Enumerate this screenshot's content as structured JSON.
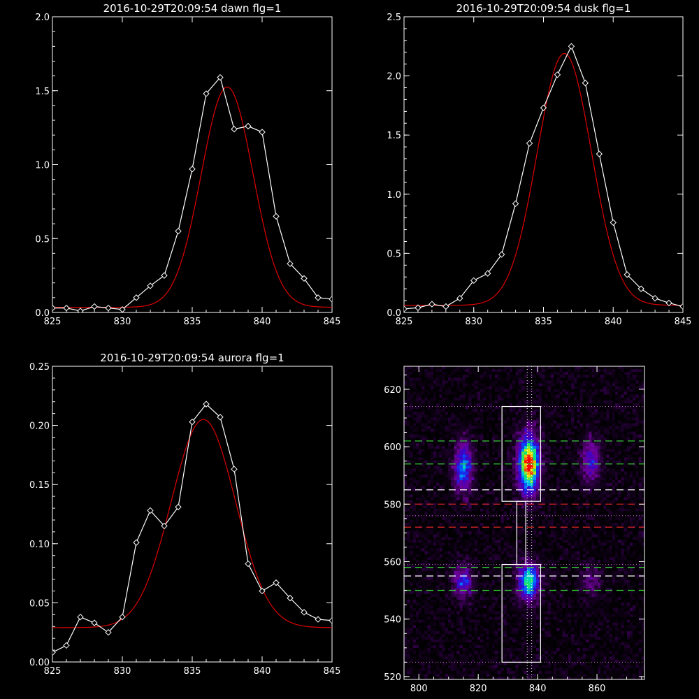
{
  "chart_data": [
    {
      "type": "line",
      "title": "2016-10-29T20:09:54 dawn flg=1",
      "xlim": [
        825,
        845
      ],
      "ylim": [
        0,
        2.0
      ],
      "xticks": [
        "825",
        "830",
        "835",
        "840",
        "845"
      ],
      "xtick_values": [
        825,
        830,
        835,
        840,
        845
      ],
      "yticks": [
        "0.0",
        "0.5",
        "1.0",
        "1.5",
        "2.0"
      ],
      "ytick_values": [
        0,
        0.5,
        1.0,
        1.5,
        2.0
      ],
      "observed": {
        "color": "#ffffff",
        "marker": "diamond",
        "x": [
          825,
          826,
          827,
          828,
          829,
          830,
          831,
          832,
          833,
          834,
          835,
          836,
          837,
          838,
          839,
          840,
          841,
          842,
          843,
          844,
          845
        ],
        "y": [
          0.03,
          0.03,
          0.01,
          0.04,
          0.03,
          0.02,
          0.1,
          0.18,
          0.25,
          0.55,
          0.97,
          1.48,
          1.59,
          1.24,
          1.26,
          1.22,
          0.65,
          0.33,
          0.23,
          0.1,
          0.09
        ]
      },
      "fit": {
        "color": "#e00000",
        "amplitude": 1.49,
        "center": 837.5,
        "sigma": 1.85,
        "offset": 0.035,
        "slope": 0.0
      }
    },
    {
      "type": "line",
      "title": "2016-10-29T20:09:54 dusk flg=1",
      "xlim": [
        825,
        845
      ],
      "ylim": [
        0,
        2.5
      ],
      "xticks": [
        "825",
        "830",
        "835",
        "840",
        "845"
      ],
      "xtick_values": [
        825,
        830,
        835,
        840,
        845
      ],
      "yticks": [
        "0.0",
        "0.5",
        "1.0",
        "1.5",
        "2.0",
        "2.5"
      ],
      "ytick_values": [
        0,
        0.5,
        1.0,
        1.5,
        2.0,
        2.5
      ],
      "observed": {
        "color": "#ffffff",
        "marker": "diamond",
        "x": [
          825,
          826,
          827,
          828,
          829,
          830,
          831,
          832,
          833,
          834,
          835,
          836,
          837,
          838,
          839,
          840,
          841,
          842,
          843,
          844,
          845
        ],
        "y": [
          0.03,
          0.04,
          0.07,
          0.05,
          0.12,
          0.27,
          0.33,
          0.49,
          0.92,
          1.43,
          1.73,
          2.01,
          2.25,
          1.94,
          1.34,
          0.76,
          0.32,
          0.2,
          0.12,
          0.08,
          0.05
        ]
      },
      "fit": {
        "color": "#e00000",
        "amplitude": 2.13,
        "center": 836.5,
        "sigma": 1.95,
        "offset": 0.06,
        "slope": 0.0
      }
    },
    {
      "type": "line",
      "title": "2016-10-29T20:09:54 aurora flg=1",
      "xlim": [
        825,
        845
      ],
      "ylim": [
        0,
        0.25
      ],
      "xticks": [
        "825",
        "830",
        "835",
        "840",
        "845"
      ],
      "xtick_values": [
        825,
        830,
        835,
        840,
        845
      ],
      "yticks": [
        "0.00",
        "0.05",
        "0.10",
        "0.15",
        "0.20",
        "0.25"
      ],
      "ytick_values": [
        0,
        0.05,
        0.1,
        0.15,
        0.2,
        0.25
      ],
      "observed": {
        "color": "#ffffff",
        "marker": "diamond",
        "x": [
          825,
          826,
          827,
          828,
          829,
          830,
          831,
          832,
          833,
          834,
          835,
          836,
          837,
          838,
          839,
          840,
          841,
          842,
          843,
          844,
          845
        ],
        "y": [
          0.008,
          0.014,
          0.038,
          0.033,
          0.025,
          0.038,
          0.101,
          0.128,
          0.115,
          0.131,
          0.203,
          0.218,
          0.207,
          0.163,
          0.083,
          0.06,
          0.067,
          0.054,
          0.042,
          0.036,
          0.035
        ]
      },
      "fit": {
        "color": "#e00000",
        "amplitude": 0.176,
        "center": 835.8,
        "sigma": 2.3,
        "offset": 0.029,
        "slope": 0.0
      }
    },
    {
      "type": "heatmap",
      "title": "",
      "xlim": [
        795,
        876
      ],
      "ylim": [
        519,
        628
      ],
      "xticks": [
        "800",
        "820",
        "840",
        "860"
      ],
      "xtick_values": [
        800,
        820,
        840,
        860
      ],
      "yticks": [
        "520",
        "540",
        "560",
        "580",
        "600",
        "620"
      ],
      "ytick_values": [
        520,
        540,
        560,
        580,
        600,
        620
      ],
      "blobs": [
        {
          "x": 815,
          "y": 593,
          "sx": 2.2,
          "sy": 6,
          "amp": 0.55
        },
        {
          "x": 837,
          "y": 594,
          "sx": 2.5,
          "sy": 7,
          "amp": 1.0
        },
        {
          "x": 858,
          "y": 595,
          "sx": 2.2,
          "sy": 5,
          "amp": 0.42
        },
        {
          "x": 815,
          "y": 553,
          "sx": 2.2,
          "sy": 4,
          "amp": 0.45
        },
        {
          "x": 837,
          "y": 553,
          "sx": 2.5,
          "sy": 4.5,
          "amp": 0.72
        },
        {
          "x": 858,
          "y": 553,
          "sx": 2.2,
          "sy": 3.5,
          "amp": 0.22
        }
      ],
      "boxes": [
        {
          "x0": 828,
          "x1": 841,
          "y0": 581,
          "y1": 614,
          "color": "#ffffff"
        },
        {
          "x0": 828,
          "x1": 841,
          "y0": 525,
          "y1": 559,
          "color": "#ffffff"
        },
        {
          "x0": 833,
          "x1": 836,
          "y0": 559,
          "y1": 581,
          "color": "#ffffff"
        }
      ],
      "hlines": [
        {
          "y": 614,
          "color": "#c070c0",
          "style": "dotted"
        },
        {
          "y": 602,
          "color": "#33cc33",
          "style": "dashed"
        },
        {
          "y": 594,
          "color": "#33cc33",
          "style": "dashed"
        },
        {
          "y": 585,
          "color": "#ffffff",
          "style": "dashed"
        },
        {
          "y": 580,
          "color": "#cc2222",
          "style": "dashed"
        },
        {
          "y": 576,
          "color": "#c070c0",
          "style": "dotted"
        },
        {
          "y": 572,
          "color": "#cc2222",
          "style": "dashed"
        },
        {
          "y": 559,
          "color": "#c070c0",
          "style": "dotted"
        },
        {
          "y": 558,
          "color": "#33cc33",
          "style": "dashed"
        },
        {
          "y": 555,
          "color": "#ffffff",
          "style": "dashed"
        },
        {
          "y": 550,
          "color": "#33cc33",
          "style": "dashed"
        },
        {
          "y": 525,
          "color": "#c070c0",
          "style": "dotted"
        }
      ],
      "vlines": [
        {
          "x": 836.5,
          "color": "#ffffff",
          "style": "dotted"
        },
        {
          "x": 838,
          "color": "#ffffff",
          "style": "dotted"
        }
      ]
    }
  ]
}
